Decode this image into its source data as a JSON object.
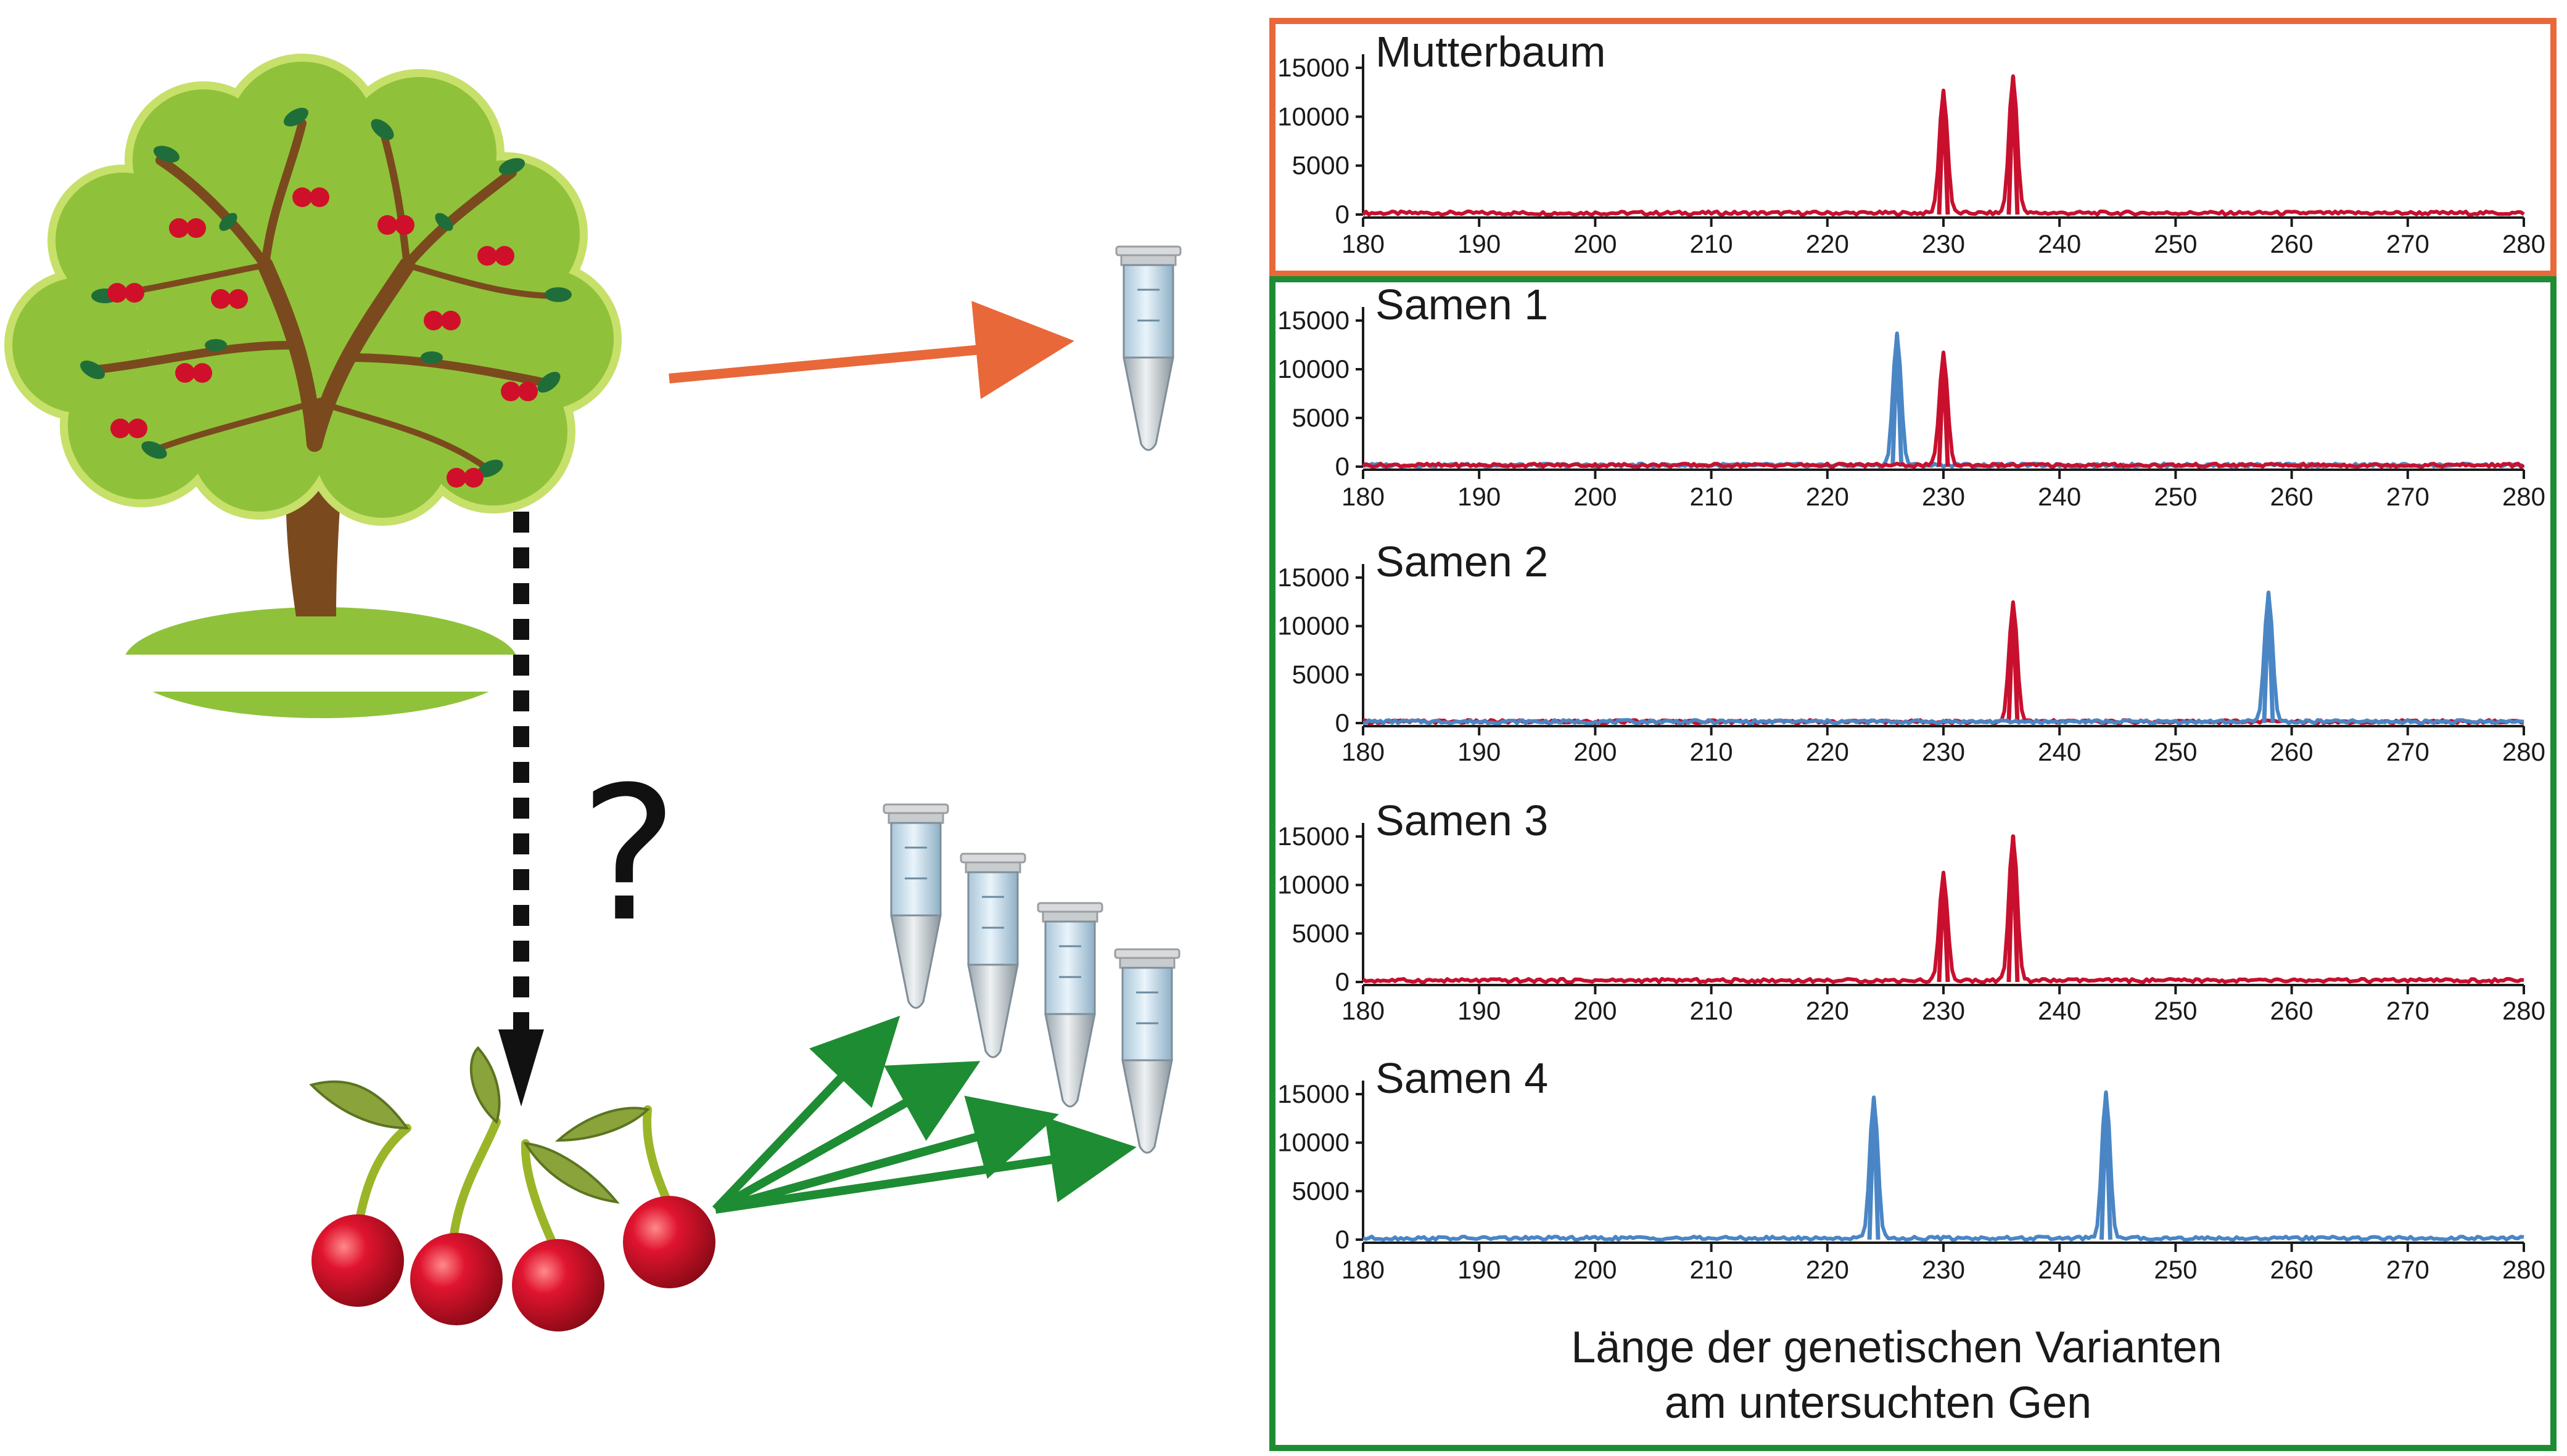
{
  "colors": {
    "mother_frame": "#e8683a",
    "seed_frame": "#1e8c33",
    "arrow_orange": "#e8683a",
    "arrow_green": "#1e8c33",
    "series_red": "#c8102e",
    "series_blue": "#4a86c5",
    "tree_foliage": "#8fc23a",
    "tree_foliage_light": "#c6e06a",
    "tree_trunk": "#7a4a1e",
    "leaf_dark": "#1f6e3a",
    "cherry": "#d0102a"
  },
  "illustration": {
    "question_mark": "?",
    "icons": [
      "cherry-tree-icon",
      "tube-icon",
      "cherries-icon"
    ]
  },
  "caption": {
    "line1": "Länge der genetischen Varianten",
    "line2": "am untersuchten Gen"
  },
  "chart_data": [
    {
      "type": "line",
      "title": "Mutterbaum",
      "xlim": [
        180,
        280
      ],
      "ylim": [
        0,
        15000
      ],
      "xticks": [
        180,
        190,
        200,
        210,
        220,
        230,
        240,
        250,
        260,
        270,
        280
      ],
      "yticks": [
        0,
        5000,
        10000,
        15000
      ],
      "series": [
        {
          "color": "red",
          "peaks": [
            {
              "x": 230,
              "y": 12500
            },
            {
              "x": 236,
              "y": 14000
            }
          ]
        }
      ]
    },
    {
      "type": "line",
      "title": "Samen 1",
      "xlim": [
        180,
        280
      ],
      "ylim": [
        0,
        15000
      ],
      "xticks": [
        180,
        190,
        200,
        210,
        220,
        230,
        240,
        250,
        260,
        270,
        280
      ],
      "yticks": [
        0,
        5000,
        10000,
        15000
      ],
      "series": [
        {
          "color": "blue",
          "peaks": [
            {
              "x": 226,
              "y": 13500
            }
          ]
        },
        {
          "color": "red",
          "peaks": [
            {
              "x": 230,
              "y": 11500
            }
          ]
        }
      ]
    },
    {
      "type": "line",
      "title": "Samen 2",
      "xlim": [
        180,
        280
      ],
      "ylim": [
        0,
        15000
      ],
      "xticks": [
        180,
        190,
        200,
        210,
        220,
        230,
        240,
        250,
        260,
        270,
        280
      ],
      "yticks": [
        0,
        5000,
        10000,
        15000
      ],
      "series": [
        {
          "color": "red",
          "peaks": [
            {
              "x": 236,
              "y": 12200
            }
          ]
        },
        {
          "color": "blue",
          "peaks": [
            {
              "x": 258,
              "y": 13300
            }
          ]
        }
      ]
    },
    {
      "type": "line",
      "title": "Samen 3",
      "xlim": [
        180,
        280
      ],
      "ylim": [
        0,
        15000
      ],
      "xticks": [
        180,
        190,
        200,
        210,
        220,
        230,
        240,
        250,
        260,
        270,
        280
      ],
      "yticks": [
        0,
        5000,
        10000,
        15000
      ],
      "series": [
        {
          "color": "red",
          "peaks": [
            {
              "x": 230,
              "y": 11000
            },
            {
              "x": 236,
              "y": 15000
            }
          ]
        }
      ]
    },
    {
      "type": "line",
      "title": "Samen 4",
      "xlim": [
        180,
        280
      ],
      "ylim": [
        0,
        15000
      ],
      "xticks": [
        180,
        190,
        200,
        210,
        220,
        230,
        240,
        250,
        260,
        270,
        280
      ],
      "yticks": [
        0,
        5000,
        10000,
        15000
      ],
      "series": [
        {
          "color": "blue",
          "peaks": [
            {
              "x": 224,
              "y": 14500
            },
            {
              "x": 244,
              "y": 15000
            }
          ]
        }
      ]
    }
  ]
}
